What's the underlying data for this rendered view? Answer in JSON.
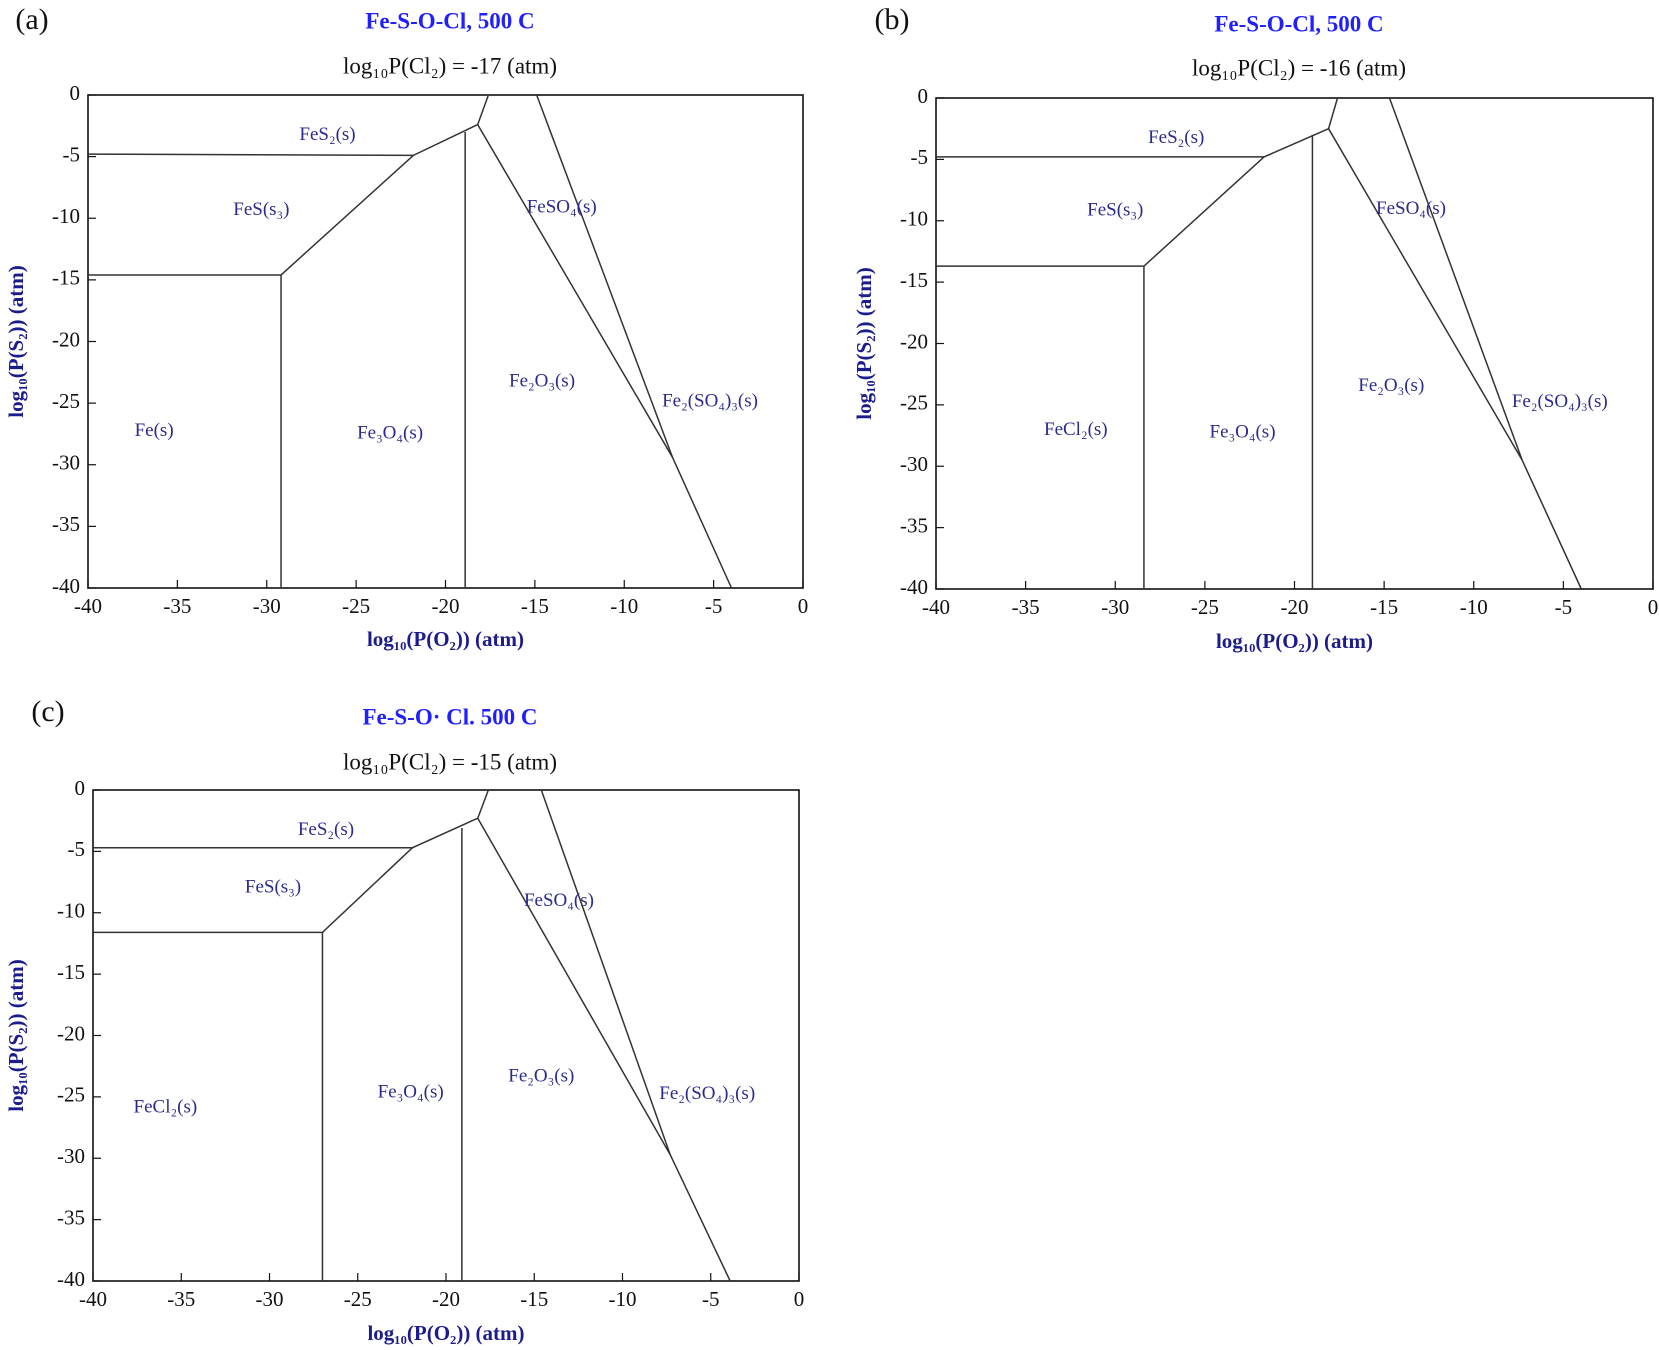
{
  "chart_data": [
    {
      "type": "line",
      "panel": "(a)",
      "title": "Fe-S-O-Cl, 500 C",
      "subtitle": "log₁₀P(Cl₂) = -17 (atm)",
      "xlabel": "log₁₀(P(O₂)) (atm)",
      "ylabel": "log₁₀(P(S₂)) (atm)",
      "xlim": [
        -40,
        0
      ],
      "ylim": [
        -40,
        0
      ],
      "xticks": [
        -40,
        -35,
        -30,
        -25,
        -20,
        -15,
        -10,
        -5,
        0
      ],
      "yticks": [
        0,
        -5,
        -10,
        -15,
        -20,
        -25,
        -30,
        -35,
        -40
      ],
      "line_color": "#333333",
      "label_color": "#2b2b8f",
      "lines": [
        {
          "x": [
            -40,
            -21.8,
            -18.2,
            -17.6
          ],
          "y": [
            -4.8,
            -4.9,
            -2.4,
            0
          ]
        },
        {
          "x": [
            -40,
            -29.2,
            -21.8
          ],
          "y": [
            -14.6,
            -14.6,
            -4.9
          ]
        },
        {
          "x": [
            -29.2,
            -29.2
          ],
          "y": [
            -14.6,
            -40
          ]
        },
        {
          "x": [
            -18.9,
            -18.9
          ],
          "y": [
            -3.0,
            -40
          ]
        },
        {
          "x": [
            -18.2,
            -7.3,
            -4.0
          ],
          "y": [
            -2.4,
            -29.4,
            -40
          ]
        },
        {
          "x": [
            -14.9,
            -7.3
          ],
          "y": [
            0,
            -29.4
          ]
        }
      ],
      "regions": [
        {
          "label": "FeS₂(s)",
          "x": -26.6,
          "y": -3.3
        },
        {
          "label": "FeS(s₃)",
          "x": -30.3,
          "y": -9.4
        },
        {
          "label": "Fe(s)",
          "x": -36.3,
          "y": -27.3
        },
        {
          "label": "Fe₃O₄(s)",
          "x": -23.1,
          "y": -27.5
        },
        {
          "label": "Fe₂O₃(s)",
          "x": -14.6,
          "y": -23.3
        },
        {
          "label": "FeSO₄(s)",
          "x": -13.5,
          "y": -9.2
        },
        {
          "label": "Fe₂(SO₄)₃(s)",
          "x": -5.2,
          "y": -24.9
        }
      ]
    },
    {
      "type": "line",
      "panel": "(b)",
      "title": "Fe-S-O-Cl, 500 C",
      "subtitle": "log₁₀P(Cl₂) = -16 (atm)",
      "xlabel": "log₁₀(P(O₂)) (atm)",
      "ylabel": "log₁₀(P(S₂)) (atm)",
      "xlim": [
        -40,
        0
      ],
      "ylim": [
        -40,
        0
      ],
      "xticks": [
        -40,
        -35,
        -30,
        -25,
        -20,
        -15,
        -10,
        -5,
        0
      ],
      "yticks": [
        0,
        -5,
        -10,
        -15,
        -20,
        -25,
        -30,
        -35,
        -40
      ],
      "line_color": "#333333",
      "label_color": "#2b2b8f",
      "lines": [
        {
          "x": [
            -40,
            -21.7,
            -18.1,
            -17.6
          ],
          "y": [
            -4.8,
            -4.8,
            -2.5,
            0
          ]
        },
        {
          "x": [
            -40,
            -28.4,
            -21.7
          ],
          "y": [
            -13.7,
            -13.7,
            -4.8
          ]
        },
        {
          "x": [
            -28.4,
            -28.4
          ],
          "y": [
            -13.7,
            -40
          ]
        },
        {
          "x": [
            -19.0,
            -19.0
          ],
          "y": [
            -3.0,
            -40
          ]
        },
        {
          "x": [
            -18.1,
            -7.3,
            -4.0
          ],
          "y": [
            -2.5,
            -29.5,
            -40
          ]
        },
        {
          "x": [
            -14.7,
            -7.3
          ],
          "y": [
            0,
            -29.5
          ]
        }
      ],
      "regions": [
        {
          "label": "FeS₂(s)",
          "x": -26.6,
          "y": -3.3
        },
        {
          "label": "FeS(s₃)",
          "x": -30.0,
          "y": -9.2
        },
        {
          "label": "FeCl₂(s)",
          "x": -32.2,
          "y": -27.1
        },
        {
          "label": "Fe₃O₄(s)",
          "x": -22.9,
          "y": -27.3
        },
        {
          "label": "Fe₂O₃(s)",
          "x": -14.6,
          "y": -23.5
        },
        {
          "label": "FeSO₄(s)",
          "x": -13.5,
          "y": -9.1
        },
        {
          "label": "Fe₂(SO₄)₃(s)",
          "x": -5.2,
          "y": -24.8
        }
      ]
    },
    {
      "type": "line",
      "panel": "(c)",
      "title": "Fe-S-O· Cl. 500 C",
      "subtitle": "log₁₀P(Cl₂) = -15 (atm)",
      "xlabel": "log₁₀(P(O₂)) (atm)",
      "ylabel": "log₁₀(P(S₂)) (atm)",
      "xlim": [
        -40,
        0
      ],
      "ylim": [
        -40,
        0
      ],
      "xticks": [
        -40,
        -35,
        -30,
        -25,
        -20,
        -15,
        -10,
        -5,
        0
      ],
      "yticks": [
        0,
        -5,
        -10,
        -15,
        -20,
        -25,
        -30,
        -35,
        -40
      ],
      "line_color": "#333333",
      "label_color": "#2b2b8f",
      "lines": [
        {
          "x": [
            -40,
            -21.9,
            -18.2,
            -17.6
          ],
          "y": [
            -4.7,
            -4.7,
            -2.3,
            0
          ]
        },
        {
          "x": [
            -40,
            -27.0,
            -21.9
          ],
          "y": [
            -11.6,
            -11.6,
            -4.7
          ]
        },
        {
          "x": [
            -27.0,
            -27.0
          ],
          "y": [
            -11.6,
            -40
          ]
        },
        {
          "x": [
            -19.1,
            -19.1
          ],
          "y": [
            -3.1,
            -40
          ]
        },
        {
          "x": [
            -18.2,
            -7.3,
            -3.9
          ],
          "y": [
            -2.3,
            -29.7,
            -40
          ]
        },
        {
          "x": [
            -14.6,
            -7.3
          ],
          "y": [
            0,
            -29.7
          ]
        }
      ],
      "regions": [
        {
          "label": "FeS₂(s)",
          "x": -26.8,
          "y": -3.3
        },
        {
          "label": "FeS(s₃)",
          "x": -29.8,
          "y": -8.0
        },
        {
          "label": "FeCl₂(s)",
          "x": -35.9,
          "y": -25.9
        },
        {
          "label": "Fe₃O₄(s)",
          "x": -22.0,
          "y": -24.7
        },
        {
          "label": "Fe₂O₃(s)",
          "x": -14.6,
          "y": -23.4
        },
        {
          "label": "FeSO₄(s)",
          "x": -13.6,
          "y": -9.1
        },
        {
          "label": "Fe₂(SO₄)₃(s)",
          "x": -5.2,
          "y": -24.8
        }
      ]
    }
  ]
}
